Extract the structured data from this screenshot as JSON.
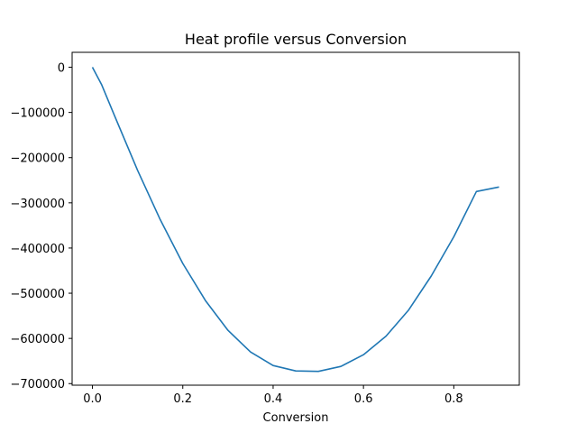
{
  "chart_data": {
    "type": "line",
    "title": "Heat profile versus Conversion",
    "xlabel": "Conversion",
    "ylabel": "",
    "xlim": [
      -0.045,
      0.945
    ],
    "ylim": [
      -703500,
      33000
    ],
    "xticks": [
      0.0,
      0.2,
      0.4,
      0.6,
      0.8
    ],
    "xtick_labels": [
      "0.0",
      "0.2",
      "0.4",
      "0.6",
      "0.8"
    ],
    "yticks": [
      0,
      -100000,
      -200000,
      -300000,
      -400000,
      -500000,
      -600000,
      -700000
    ],
    "ytick_labels": [
      "0",
      "−100000",
      "−200000",
      "−300000",
      "−400000",
      "−500000",
      "−600000",
      "−700000"
    ],
    "grid": false,
    "series": [
      {
        "color": "#1f77b4",
        "x": [
          0.0,
          0.02,
          0.05,
          0.1,
          0.15,
          0.2,
          0.25,
          0.3,
          0.35,
          0.4,
          0.45,
          0.5,
          0.55,
          0.6,
          0.65,
          0.7,
          0.75,
          0.8,
          0.85,
          0.9
        ],
        "y": [
          0,
          -38000,
          -110000,
          -228000,
          -337000,
          -434000,
          -516000,
          -582000,
          -630000,
          -660000,
          -672000,
          -673000,
          -662000,
          -636000,
          -595000,
          -537000,
          -462000,
          -375000,
          -275000,
          -265000
        ]
      }
    ]
  }
}
